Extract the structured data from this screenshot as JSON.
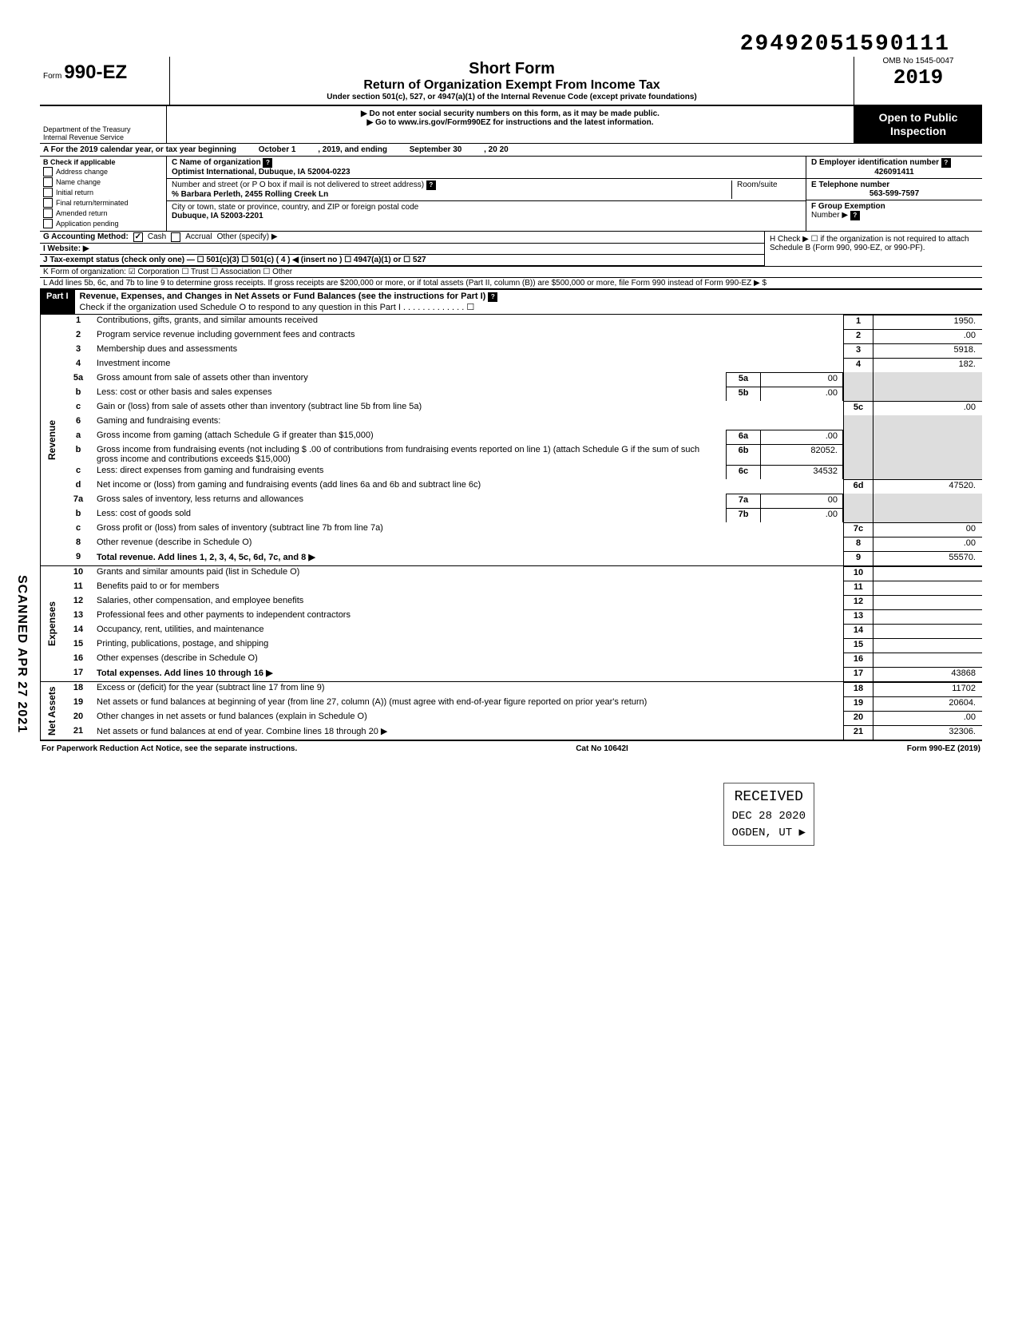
{
  "dln": "29492051590111",
  "form": {
    "prefix": "Form",
    "number": "990-EZ",
    "title_short": "Short Form",
    "title_main": "Return of Organization Exempt From Income Tax",
    "subtitle": "Under section 501(c), 527, or 4947(a)(1) of the Internal Revenue Code (except private foundations)",
    "warn1": "Do not enter social security numbers on this form, as it may be made public.",
    "warn2": "Go to www.irs.gov/Form990EZ for instructions and the latest information.",
    "year": "2019",
    "open_public1": "Open to Public",
    "open_public2": "Inspection",
    "dept1": "Department of the Treasury",
    "dept2": "Internal Revenue Service"
  },
  "rowA": {
    "label_pre": "A  For the 2019 calendar year, or tax year beginning",
    "begin": "October 1",
    "mid": ", 2019, and ending",
    "end": "September 30",
    "end2": ", 20   20"
  },
  "colB": {
    "header": "B  Check if applicable",
    "items": [
      "Address change",
      "Name change",
      "Initial return",
      "Final return/terminated",
      "Amended return",
      "Application pending"
    ]
  },
  "colC": {
    "name_label": "C  Name of organization",
    "name": "Optimist International,  Dubuque, IA 52004-0223",
    "street_label": "Number and street (or P O  box if mail is not delivered to street address)",
    "room_label": "Room/suite",
    "street": "% Barbara Perleth, 2455 Rolling Creek Ln",
    "city_label": "City or town, state or province, country, and ZIP or foreign postal code",
    "city": "Dubuque, IA 52003-2201"
  },
  "colD": {
    "ein_label": "D Employer identification number",
    "ein": "426091411",
    "phone_label": "E Telephone number",
    "phone": "563-599-7597",
    "group_label": "F Group Exemption",
    "group_label2": "Number ▶"
  },
  "rowG": {
    "label": "G  Accounting Method:",
    "cash": "Cash",
    "accrual": "Accrual",
    "other": "Other (specify) ▶"
  },
  "rowH": "H  Check ▶ ☐ if the organization is not required to attach Schedule B (Form 990, 990-EZ, or 990-PF).",
  "rowI": "I   Website: ▶",
  "rowJ": "J  Tax-exempt status (check only one) —  ☐ 501(c)(3)   ☐ 501(c) (  4  ) ◀ (insert no )  ☐ 4947(a)(1) or   ☐ 527",
  "rowK": "K  Form of organization:   ☑ Corporation    ☐ Trust    ☐ Association    ☐ Other",
  "rowL": "L  Add lines 5b, 6c, and 7b to line 9 to determine gross receipts. If gross receipts are $200,000 or more, or if total assets (Part II, column (B)) are $500,000 or more, file Form 990 instead of Form 990-EZ       ▶  $",
  "part1": {
    "label": "Part I",
    "title": "Revenue, Expenses, and Changes in Net Assets or Fund Balances (see the instructions for Part I)",
    "check_line": "Check if the organization used Schedule O to respond to any question in this Part I  . . . . . . . . . . . . .  ☐"
  },
  "sections": {
    "revenue": "Revenue",
    "expenses": "Expenses",
    "netassets": "Net Assets"
  },
  "lines": {
    "l1": {
      "n": "1",
      "t": "Contributions, gifts, grants, and similar amounts received",
      "box": "1",
      "val": "1950."
    },
    "l2": {
      "n": "2",
      "t": "Program service revenue including government fees and contracts",
      "box": "2",
      "val": ".00"
    },
    "l3": {
      "n": "3",
      "t": "Membership dues and assessments",
      "box": "3",
      "val": "5918."
    },
    "l4": {
      "n": "4",
      "t": "Investment income",
      "box": "4",
      "val": "182."
    },
    "l5a": {
      "n": "5a",
      "t": "Gross amount from sale of assets other than inventory",
      "mbox": "5a",
      "mval": "00"
    },
    "l5b": {
      "n": "b",
      "t": "Less: cost or other basis and sales expenses",
      "mbox": "5b",
      "mval": ".00"
    },
    "l5c": {
      "n": "c",
      "t": "Gain or (loss) from sale of assets other than inventory (subtract line 5b from line 5a)",
      "box": "5c",
      "val": ".00"
    },
    "l6": {
      "n": "6",
      "t": "Gaming and fundraising events:"
    },
    "l6a": {
      "n": "a",
      "t": "Gross income from gaming (attach Schedule G if greater than $15,000)",
      "mbox": "6a",
      "mval": ".00"
    },
    "l6b": {
      "n": "b",
      "t": "Gross income from fundraising events (not including  $                  .00 of contributions from fundraising events reported on line 1) (attach Schedule G if the sum of such gross income and contributions exceeds $15,000)",
      "mbox": "6b",
      "mval": "82052."
    },
    "l6c": {
      "n": "c",
      "t": "Less: direct expenses from gaming and fundraising events",
      "mbox": "6c",
      "mval": "34532"
    },
    "l6d": {
      "n": "d",
      "t": "Net income or (loss) from gaming and fundraising events (add lines 6a and 6b and subtract line 6c)",
      "box": "6d",
      "val": "47520."
    },
    "l7a": {
      "n": "7a",
      "t": "Gross sales of inventory, less returns and allowances",
      "mbox": "7a",
      "mval": "00"
    },
    "l7b": {
      "n": "b",
      "t": "Less: cost of goods sold",
      "mbox": "7b",
      "mval": ".00"
    },
    "l7c": {
      "n": "c",
      "t": "Gross profit or (loss) from sales of inventory (subtract line 7b from line 7a)",
      "box": "7c",
      "val": "00"
    },
    "l8": {
      "n": "8",
      "t": "Other revenue (describe in Schedule O)",
      "box": "8",
      "val": ".00"
    },
    "l9": {
      "n": "9",
      "t": "Total revenue. Add lines 1, 2, 3, 4, 5c, 6d, 7c, and 8   ▶",
      "box": "9",
      "val": "55570.",
      "bold": true
    },
    "l10": {
      "n": "10",
      "t": "Grants and similar amounts paid (list in Schedule O)",
      "box": "10",
      "val": ""
    },
    "l11": {
      "n": "11",
      "t": "Benefits paid to or for members",
      "box": "11",
      "val": ""
    },
    "l12": {
      "n": "12",
      "t": "Salaries, other compensation, and employee benefits",
      "box": "12",
      "val": ""
    },
    "l13": {
      "n": "13",
      "t": "Professional fees and other payments to independent contractors",
      "box": "13",
      "val": ""
    },
    "l14": {
      "n": "14",
      "t": "Occupancy, rent, utilities, and maintenance",
      "box": "14",
      "val": ""
    },
    "l15": {
      "n": "15",
      "t": "Printing, publications, postage, and shipping",
      "box": "15",
      "val": ""
    },
    "l16": {
      "n": "16",
      "t": "Other expenses (describe in Schedule O)",
      "box": "16",
      "val": ""
    },
    "l17": {
      "n": "17",
      "t": "Total expenses. Add lines 10 through 16   ▶",
      "box": "17",
      "val": "43868",
      "bold": true
    },
    "l18": {
      "n": "18",
      "t": "Excess or (deficit) for the year (subtract line 17 from line 9)",
      "box": "18",
      "val": "11702"
    },
    "l19": {
      "n": "19",
      "t": "Net assets or fund balances at beginning of year (from line 27, column (A)) (must agree with end-of-year figure reported on prior year's return)",
      "box": "19",
      "val": "20604."
    },
    "l20": {
      "n": "20",
      "t": "Other changes in net assets or fund balances (explain in Schedule O)",
      "box": "20",
      "val": ".00"
    },
    "l21": {
      "n": "21",
      "t": "Net assets or fund balances at end of year. Combine lines 18 through 20   ▶",
      "box": "21",
      "val": "32306."
    }
  },
  "footer": {
    "left": "For Paperwork Reduction Act Notice, see the separate instructions.",
    "mid": "Cat  No  10642I",
    "right": "Form 990-EZ (2019)"
  },
  "stamps": {
    "scanned": "SCANNED APR 27 2021",
    "received": "RECEIVED",
    "received_date": "DEC 28 2020",
    "received_loc": "OGDEN, UT ▶"
  }
}
